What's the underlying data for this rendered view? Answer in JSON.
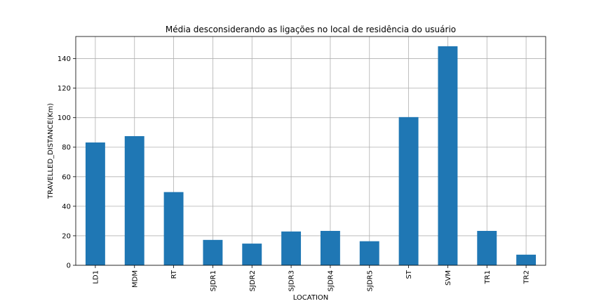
{
  "chart_data": {
    "type": "bar",
    "title": "Média desconsiderando as ligações no local de residência do usuário",
    "xlabel": "LOCATION",
    "ylabel": "TRAVELLED_DISTANCE(Km)",
    "categories": [
      "LD1",
      "MDM",
      "RT",
      "SJDR1",
      "SJDR2",
      "SJDR3",
      "SJDR4",
      "SJDR5",
      "ST",
      "SVM",
      "TR1",
      "TR2"
    ],
    "values": [
      83.2,
      87.5,
      49.6,
      17.2,
      14.7,
      22.9,
      23.3,
      16.3,
      100.4,
      148.4,
      23.3,
      7.2
    ],
    "ylim": [
      0,
      155
    ],
    "yticks": [
      0,
      20,
      40,
      60,
      80,
      100,
      120,
      140
    ],
    "grid": true,
    "colors": {
      "bar": "#1f77b4",
      "grid": "#b0b0b0"
    }
  }
}
